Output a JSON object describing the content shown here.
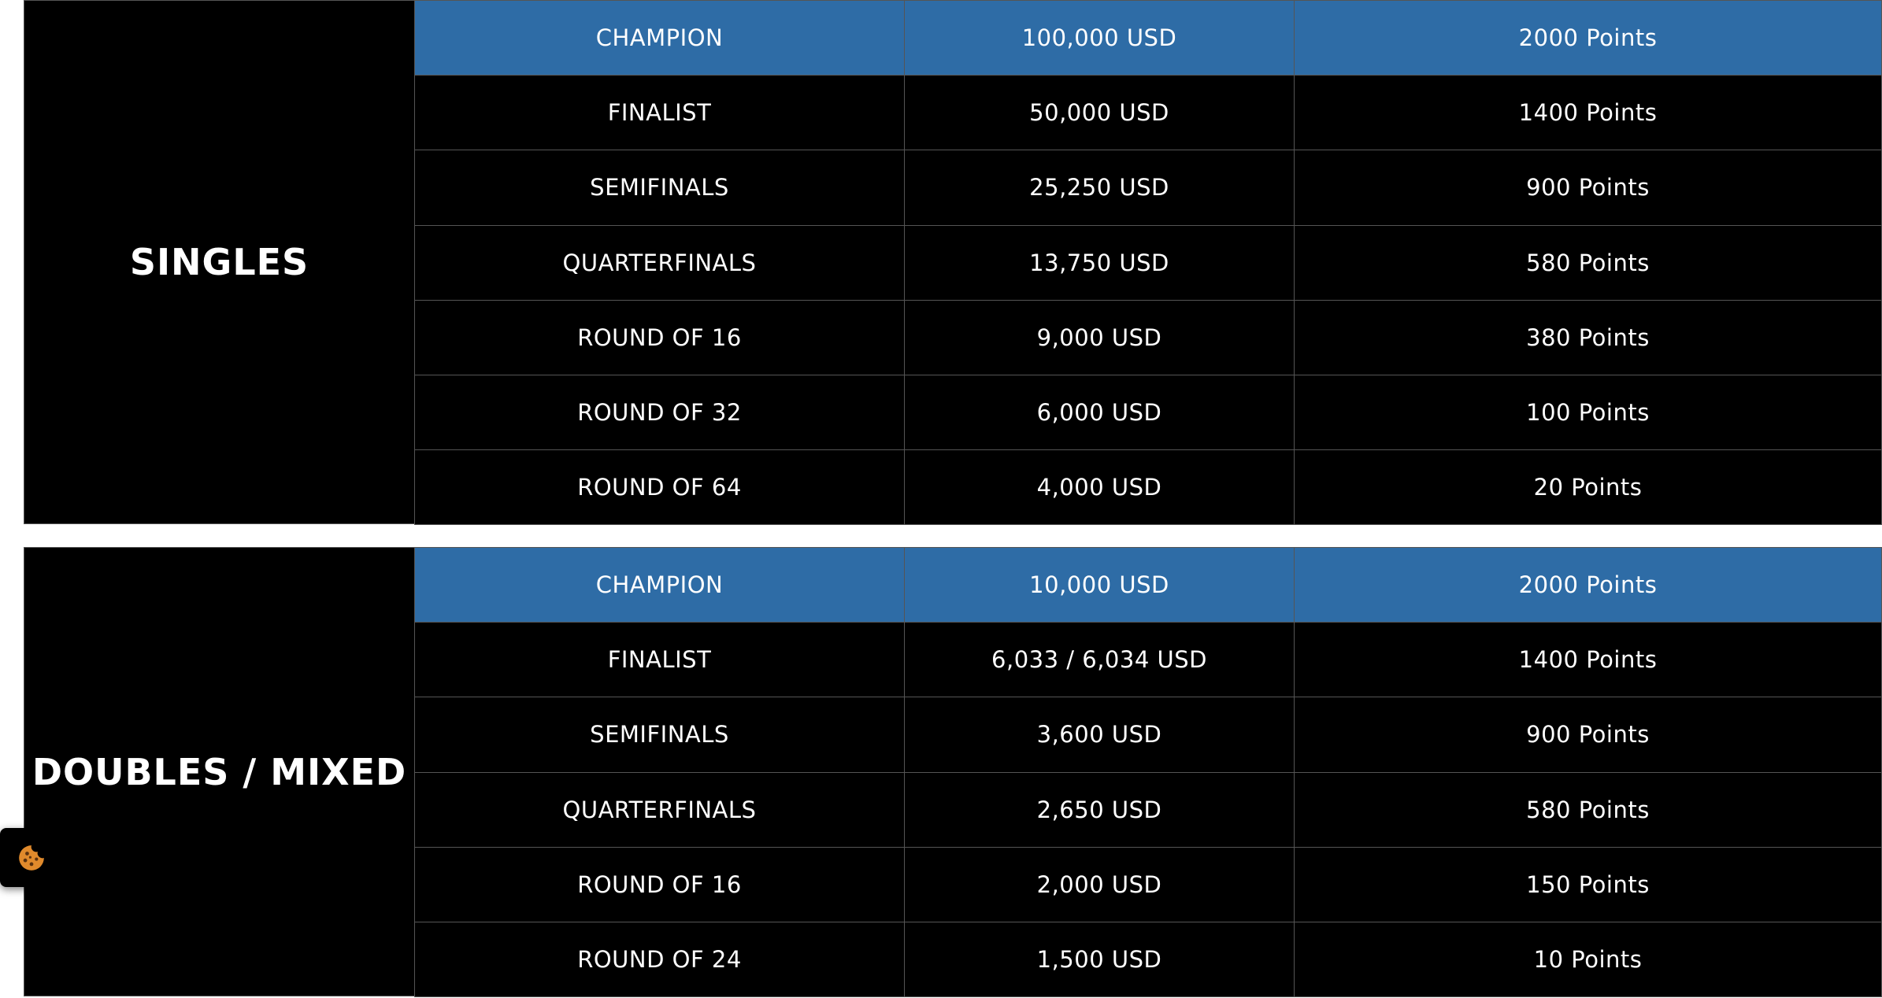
{
  "tables": [
    {
      "title": "SINGLES",
      "rows": [
        [
          "CHAMPION",
          "100,000 USD",
          "2000 Points"
        ],
        [
          "FINALIST",
          "50,000 USD",
          "1400 Points"
        ],
        [
          "SEMIFINALS",
          "25,250 USD",
          "900 Points"
        ],
        [
          "QUARTERFINALS",
          "13,750 USD",
          "580 Points"
        ],
        [
          "ROUND OF 16",
          "9,000 USD",
          "380 Points"
        ],
        [
          "ROUND OF 32",
          "6,000 USD",
          "100 Points"
        ],
        [
          "ROUND OF 64",
          "4,000 USD",
          "20 Points"
        ]
      ]
    },
    {
      "title": "DOUBLES / MIXED",
      "rows": [
        [
          "CHAMPION",
          "10,000 USD",
          "2000 Points"
        ],
        [
          "FINALIST",
          "6,033 / 6,034 USD",
          "1400 Points"
        ],
        [
          "SEMIFINALS",
          "3,600 USD",
          "900 Points"
        ],
        [
          "QUARTERFINALS",
          "2,650 USD",
          "580 Points"
        ],
        [
          "ROUND OF 16",
          "2,000 USD",
          "150 Points"
        ],
        [
          "ROUND OF 24",
          "1,500 USD",
          "10 Points"
        ]
      ]
    }
  ]
}
